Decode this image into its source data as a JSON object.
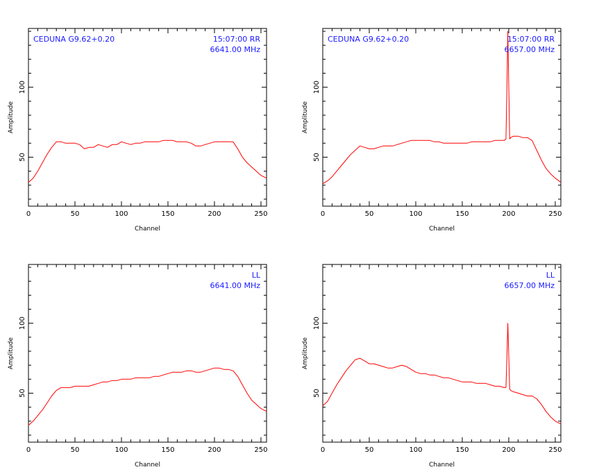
{
  "colors": {
    "trace": "#ff0000",
    "annotation": "#1a1aff",
    "axes": "#000000"
  },
  "chart_data": [
    {
      "type": "line",
      "title": "",
      "source": "CEDUNA G9.62+0.20",
      "time_pol": "15:07:00 RR",
      "freq": "6641.00 MHz",
      "xlabel": "Channel",
      "ylabel": "Amplitude",
      "xlim": [
        0,
        256
      ],
      "ylim": [
        15,
        142
      ],
      "xticks": [
        0,
        50,
        100,
        150,
        200,
        250
      ],
      "yticks": [
        50,
        100
      ],
      "grid": false,
      "series": [
        {
          "x": [
            0,
            5,
            10,
            15,
            20,
            25,
            30,
            35,
            40,
            45,
            50,
            55,
            60,
            65,
            70,
            75,
            80,
            85,
            90,
            95,
            100,
            105,
            110,
            115,
            120,
            125,
            130,
            135,
            140,
            145,
            150,
            155,
            160,
            165,
            170,
            175,
            180,
            185,
            190,
            195,
            200,
            205,
            210,
            215,
            220,
            225,
            230,
            235,
            240,
            245,
            250,
            256
          ],
          "y": [
            32,
            35,
            40,
            46,
            52,
            57,
            61,
            61,
            60,
            60,
            60,
            59,
            56,
            57,
            57,
            59,
            58,
            57,
            59,
            59,
            61,
            60,
            59,
            60,
            60,
            61,
            61,
            61,
            61,
            62,
            62,
            62,
            61,
            61,
            61,
            60,
            58,
            58,
            59,
            60,
            61,
            61,
            61,
            61,
            61,
            56,
            50,
            46,
            43,
            40,
            37,
            35
          ]
        }
      ]
    },
    {
      "type": "line",
      "title": "",
      "source": "CEDUNA G9.62+0.20",
      "time_pol": "15:07:00 RR",
      "freq": "6657.00 MHz",
      "xlabel": "Channel",
      "ylabel": "Amplitude",
      "xlim": [
        0,
        256
      ],
      "ylim": [
        15,
        142
      ],
      "xticks": [
        0,
        50,
        100,
        150,
        200,
        250
      ],
      "yticks": [
        50,
        100
      ],
      "grid": false,
      "series": [
        {
          "x": [
            0,
            5,
            10,
            15,
            20,
            25,
            30,
            35,
            40,
            45,
            50,
            55,
            60,
            65,
            70,
            75,
            80,
            85,
            90,
            95,
            100,
            105,
            110,
            115,
            120,
            125,
            130,
            135,
            140,
            145,
            150,
            155,
            160,
            165,
            170,
            175,
            180,
            185,
            190,
            195,
            197,
            198,
            199,
            200,
            201,
            202,
            205,
            210,
            215,
            220,
            225,
            230,
            235,
            240,
            245,
            250,
            256
          ],
          "y": [
            31,
            33,
            36,
            40,
            44,
            48,
            52,
            55,
            58,
            57,
            56,
            56,
            57,
            58,
            58,
            58,
            59,
            60,
            61,
            62,
            62,
            62,
            62,
            62,
            61,
            61,
            60,
            60,
            60,
            60,
            60,
            60,
            61,
            61,
            61,
            61,
            61,
            62,
            62,
            62,
            63,
            100,
            140,
            100,
            63,
            64,
            65,
            65,
            64,
            64,
            62,
            55,
            48,
            42,
            38,
            35,
            32
          ]
        }
      ]
    },
    {
      "type": "line",
      "title": "",
      "time_pol": "LL",
      "freq": "6641.00 MHz",
      "xlabel": "Channel",
      "ylabel": "Amplitude",
      "xlim": [
        0,
        256
      ],
      "ylim": [
        15,
        142
      ],
      "xticks": [
        0,
        50,
        100,
        150,
        200,
        250
      ],
      "yticks": [
        50,
        100
      ],
      "grid": false,
      "series": [
        {
          "x": [
            0,
            5,
            10,
            15,
            20,
            25,
            30,
            35,
            40,
            45,
            50,
            55,
            60,
            65,
            70,
            75,
            80,
            85,
            90,
            95,
            100,
            105,
            110,
            115,
            120,
            125,
            130,
            135,
            140,
            145,
            150,
            155,
            160,
            165,
            170,
            175,
            180,
            185,
            190,
            195,
            200,
            205,
            210,
            215,
            220,
            225,
            230,
            235,
            240,
            245,
            250,
            256
          ],
          "y": [
            27,
            30,
            34,
            38,
            43,
            48,
            52,
            54,
            54,
            54,
            55,
            55,
            55,
            55,
            56,
            57,
            58,
            58,
            59,
            59,
            60,
            60,
            60,
            61,
            61,
            61,
            61,
            62,
            62,
            63,
            64,
            65,
            65,
            65,
            66,
            66,
            65,
            65,
            66,
            67,
            68,
            68,
            67,
            67,
            66,
            62,
            56,
            50,
            45,
            42,
            39,
            37
          ]
        }
      ]
    },
    {
      "type": "line",
      "title": "",
      "time_pol": "LL",
      "freq": "6657.00 MHz",
      "xlabel": "Channel",
      "ylabel": "Amplitude",
      "xlim": [
        0,
        256
      ],
      "ylim": [
        15,
        142
      ],
      "xticks": [
        0,
        50,
        100,
        150,
        200,
        250
      ],
      "yticks": [
        50,
        100
      ],
      "grid": false,
      "series": [
        {
          "x": [
            0,
            5,
            10,
            15,
            20,
            25,
            30,
            35,
            40,
            45,
            50,
            55,
            60,
            65,
            70,
            75,
            80,
            85,
            90,
            95,
            100,
            105,
            110,
            115,
            120,
            125,
            130,
            135,
            140,
            145,
            150,
            155,
            160,
            165,
            170,
            175,
            180,
            185,
            190,
            195,
            197,
            198,
            199,
            200,
            201,
            202,
            205,
            210,
            215,
            220,
            225,
            230,
            235,
            240,
            245,
            250,
            256
          ],
          "y": [
            41,
            44,
            50,
            56,
            61,
            66,
            70,
            74,
            75,
            73,
            71,
            71,
            70,
            69,
            68,
            68,
            69,
            70,
            69,
            67,
            65,
            64,
            64,
            63,
            63,
            62,
            61,
            61,
            60,
            59,
            58,
            58,
            58,
            57,
            57,
            57,
            56,
            55,
            55,
            54,
            54,
            76,
            100,
            76,
            53,
            52,
            51,
            50,
            49,
            48,
            48,
            46,
            42,
            37,
            33,
            30,
            28
          ]
        }
      ]
    }
  ]
}
